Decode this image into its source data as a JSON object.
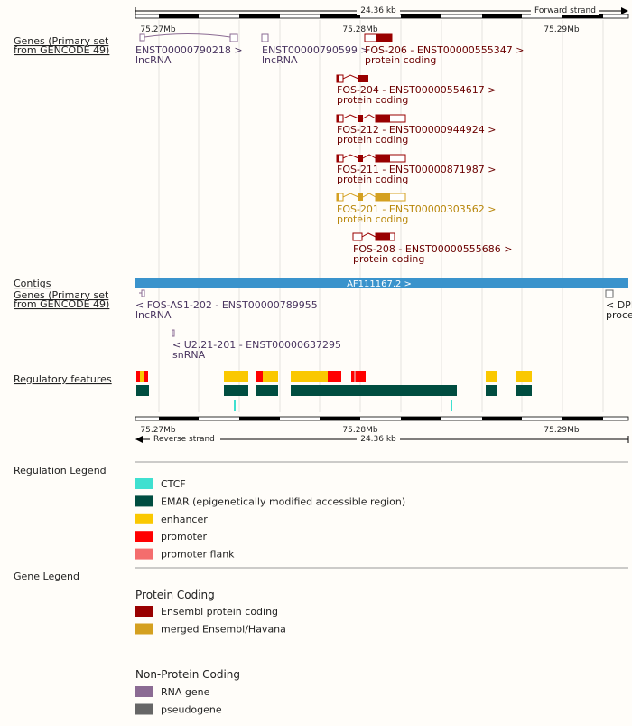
{
  "ruler": {
    "top_length": "24.36 kb",
    "top_strand": "Forward strand",
    "top_positions": [
      "75.27Mb",
      "75.28Mb",
      "75.29Mb"
    ],
    "bottom_positions": [
      "75.27Mb",
      "75.28Mb",
      "75.29Mb"
    ],
    "bottom_strand": "Reverse strand",
    "bottom_length": "24.36 kb"
  },
  "tracks": {
    "genes_forward": {
      "label": [
        "Genes (Primary set",
        "from GENCODE 49)"
      ],
      "transcripts": [
        {
          "name": "ENST00000790218 >",
          "biotype": "lncRNA"
        },
        {
          "name": "ENST00000790599 >",
          "biotype": "lncRNA"
        },
        {
          "name": "FOS-206 - ENST00000555347 >",
          "biotype": "protein coding"
        },
        {
          "name": "FOS-204 - ENST00000554617 >",
          "biotype": "protein coding"
        },
        {
          "name": "FOS-212 - ENST00000944924 >",
          "biotype": "protein coding"
        },
        {
          "name": "FOS-211 - ENST00000871987 >",
          "biotype": "protein coding"
        },
        {
          "name": "FOS-201 - ENST00000303562 >",
          "biotype": "protein coding"
        },
        {
          "name": "FOS-208 - ENST00000555686 >",
          "biotype": "protein coding"
        }
      ]
    },
    "contigs": {
      "label": "Contigs",
      "contig": "AF111167.2 >"
    },
    "genes_reverse": {
      "label": [
        "Genes (Primary set",
        "from GENCODE 49)"
      ],
      "transcripts": [
        {
          "name": "< FOS-AS1-202 - ENST00000789955",
          "biotype": "lncRNA"
        },
        {
          "name": "< DPI",
          "biotype": "proce"
        },
        {
          "name": "< U2.21-201 - ENST00000637295",
          "biotype": "snRNA"
        }
      ]
    },
    "regulatory": {
      "label": "Regulatory features"
    }
  },
  "regulation_legend": {
    "title": "Regulation Legend",
    "items": [
      {
        "label": "CTCF",
        "color": "#40e0d0"
      },
      {
        "label": "EMAR (epigenetically modified accessible region)",
        "color": "#004d40"
      },
      {
        "label": "enhancer",
        "color": "#fac800"
      },
      {
        "label": "promoter",
        "color": "#ff0000"
      },
      {
        "label": "promoter flank",
        "color": "#f46d6d"
      }
    ]
  },
  "gene_legend": {
    "title": "Gene Legend",
    "groups": [
      {
        "title": "Protein Coding",
        "items": [
          {
            "label": "Ensembl protein coding",
            "color": "#990000"
          },
          {
            "label": "merged Ensembl/Havana",
            "color": "#d4a020"
          }
        ]
      },
      {
        "title": "Non-Protein Coding",
        "items": [
          {
            "label": "RNA gene",
            "color": "#8b6b93"
          },
          {
            "label": "pseudogene",
            "color": "#666666"
          }
        ]
      }
    ]
  }
}
